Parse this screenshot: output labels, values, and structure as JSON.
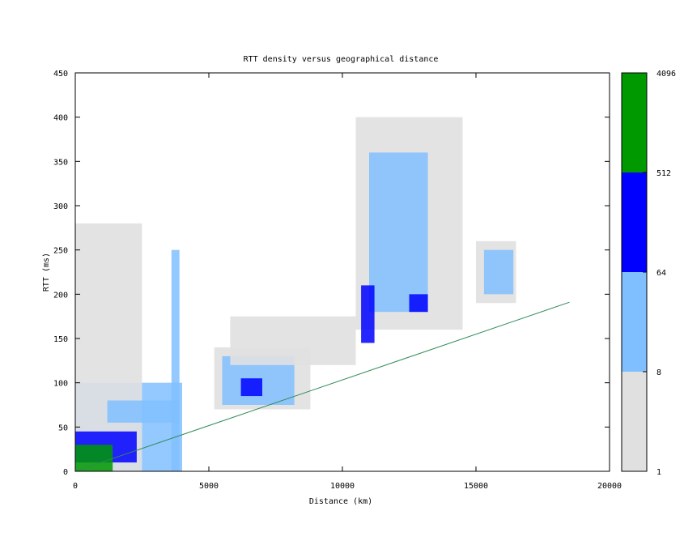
{
  "chart_data": {
    "type": "heatmap",
    "title": "RTT density versus geographical distance",
    "xlabel": "Distance (km)",
    "ylabel": "RTT (ms)",
    "xlim": [
      0,
      20000
    ],
    "ylim": [
      0,
      450
    ],
    "x_ticks": [
      "0",
      "5000",
      "10000",
      "15000",
      "20000"
    ],
    "y_ticks": [
      "0",
      "50",
      "100",
      "150",
      "200",
      "250",
      "300",
      "350",
      "400",
      "450"
    ],
    "colorbar": {
      "scale": "log",
      "tick_labels": [
        "1",
        "8",
        "64",
        "512",
        "4096"
      ],
      "bins": [
        {
          "min": 1,
          "max": 8,
          "color": "#e0e0e0"
        },
        {
          "min": 8,
          "max": 64,
          "color": "#80bfff"
        },
        {
          "min": 64,
          "max": 512,
          "color": "#0000ff"
        },
        {
          "min": 512,
          "max": 4096,
          "color": "#009900"
        }
      ]
    },
    "density_regions": [
      {
        "x": [
          0,
          4000
        ],
        "y": [
          0,
          100
        ],
        "level": 1
      },
      {
        "x": [
          0,
          2500
        ],
        "y": [
          0,
          280
        ],
        "level": 0
      },
      {
        "x": [
          0,
          2300
        ],
        "y": [
          10,
          45
        ],
        "level": 2
      },
      {
        "x": [
          0,
          1400
        ],
        "y": [
          0,
          30
        ],
        "level": 3
      },
      {
        "x": [
          1200,
          3900
        ],
        "y": [
          55,
          80
        ],
        "level": 1
      },
      {
        "x": [
          3600,
          3900
        ],
        "y": [
          0,
          250
        ],
        "level": 1
      },
      {
        "x": [
          5200,
          8800
        ],
        "y": [
          70,
          140
        ],
        "level": 0
      },
      {
        "x": [
          5500,
          8200
        ],
        "y": [
          75,
          130
        ],
        "level": 1
      },
      {
        "x": [
          6200,
          7000
        ],
        "y": [
          85,
          105
        ],
        "level": 2
      },
      {
        "x": [
          5800,
          10500
        ],
        "y": [
          120,
          175
        ],
        "level": 0
      },
      {
        "x": [
          10500,
          14500
        ],
        "y": [
          160,
          400
        ],
        "level": 0
      },
      {
        "x": [
          11000,
          13200
        ],
        "y": [
          180,
          360
        ],
        "level": 1
      },
      {
        "x": [
          10700,
          11200
        ],
        "y": [
          145,
          210
        ],
        "level": 2
      },
      {
        "x": [
          12500,
          13200
        ],
        "y": [
          180,
          200
        ],
        "level": 2
      },
      {
        "x": [
          15000,
          16500
        ],
        "y": [
          190,
          260
        ],
        "level": 0
      },
      {
        "x": [
          15300,
          16400
        ],
        "y": [
          200,
          250
        ],
        "level": 1
      }
    ],
    "reference_line": {
      "x": [
        0,
        18500
      ],
      "y": [
        0,
        191
      ],
      "color": "#2e8b57"
    }
  }
}
